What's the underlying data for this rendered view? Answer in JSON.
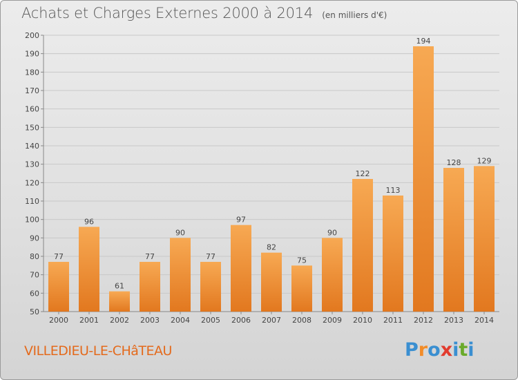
{
  "header": {
    "title": "Achats et Charges Externes 2000 à 2014",
    "unit": "(en milliers d'€)"
  },
  "footer": {
    "commune": "VILLEDIEU-LE-CHâTEAU",
    "logo_letters": [
      "P",
      "r",
      "o",
      "x",
      "i",
      "t",
      "i"
    ],
    "logo_colors": [
      "#3a8fd1",
      "#f28c28",
      "#3a8fd1",
      "#e23b2e",
      "#3a8fd1",
      "#6aaa2a",
      "#3a8fd1"
    ]
  },
  "colors": {
    "bar_light": "#f7a953",
    "bar_dark": "#e2781f",
    "grid": "#c8c8c8",
    "axis_text": "#444444"
  },
  "chart_data": {
    "type": "bar",
    "categories": [
      "2000",
      "2001",
      "2002",
      "2003",
      "2004",
      "2005",
      "2006",
      "2007",
      "2008",
      "2009",
      "2010",
      "2011",
      "2012",
      "2013",
      "2014"
    ],
    "values": [
      77,
      96,
      61,
      77,
      90,
      77,
      97,
      82,
      75,
      90,
      122,
      113,
      194,
      128,
      129
    ],
    "title": "Achats et Charges Externes 2000 à 2014",
    "ylim": [
      50,
      200
    ],
    "yticks": [
      50,
      60,
      70,
      80,
      90,
      100,
      110,
      120,
      130,
      140,
      150,
      160,
      170,
      180,
      190,
      200
    ],
    "grid": true
  }
}
